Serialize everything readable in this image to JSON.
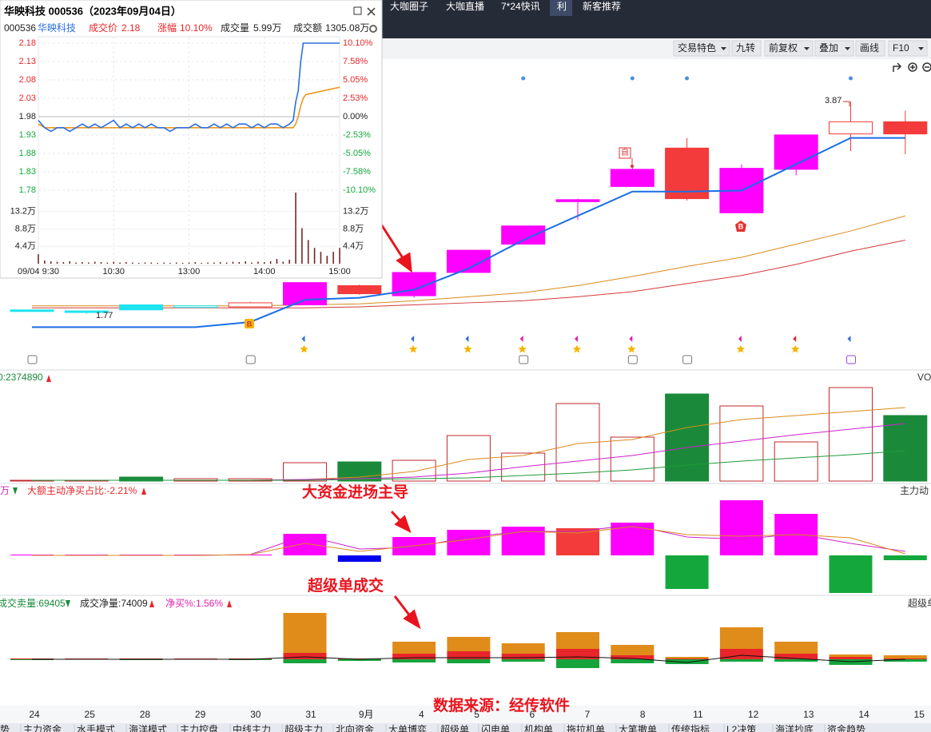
{
  "top_tabs": [
    "大咖圈子",
    "大咖直播",
    "7*24快讯",
    "利",
    "新客推荐"
  ],
  "toolbar": [
    "交易特色",
    "九转",
    "前复权",
    "叠加",
    "画线",
    "F10"
  ],
  "popup": {
    "title": "华映科技 000536（2023年09月04日）",
    "code": "000536",
    "name": "华映科技",
    "price_label": "成交价",
    "price": "2.18",
    "change_label": "涨幅",
    "change": "10.10%",
    "volume_label": "成交量",
    "volume": "5.99万",
    "amount_label": "成交额",
    "amount": "1305.08万",
    "chart_data": {
      "type": "line",
      "x": [
        0,
        5,
        10,
        15,
        20,
        25,
        30,
        35,
        40,
        45,
        50,
        55,
        60,
        65,
        70,
        75,
        80,
        85,
        90,
        95,
        100,
        105,
        110,
        115,
        120,
        125,
        130,
        135,
        140,
        145,
        150,
        155,
        160,
        165,
        170,
        175,
        180,
        185,
        190,
        195,
        200,
        203,
        205,
        207,
        209,
        211,
        213,
        240
      ],
      "series": [
        {
          "color": "#2d6ee0",
          "values": [
            1.97,
            1.95,
            1.94,
            1.95,
            1.95,
            1.94,
            1.95,
            1.96,
            1.95,
            1.96,
            1.95,
            1.96,
            1.97,
            1.95,
            1.96,
            1.95,
            1.96,
            1.95,
            1.96,
            1.95,
            1.95,
            1.94,
            1.95,
            1.95,
            1.95,
            1.96,
            1.95,
            1.95,
            1.96,
            1.95,
            1.96,
            1.95,
            1.96,
            1.96,
            1.95,
            1.96,
            1.95,
            1.96,
            1.96,
            1.95,
            1.96,
            1.97,
            2.02,
            2.05,
            2.13,
            2.18,
            2.18,
            2.18
          ]
        },
        {
          "color": "#f0961e",
          "values": [
            1.96,
            1.95,
            1.95,
            1.95,
            1.95,
            1.95,
            1.95,
            1.95,
            1.95,
            1.95,
            1.95,
            1.95,
            1.95,
            1.95,
            1.95,
            1.95,
            1.95,
            1.95,
            1.95,
            1.95,
            1.95,
            1.95,
            1.95,
            1.95,
            1.95,
            1.95,
            1.95,
            1.95,
            1.95,
            1.95,
            1.95,
            1.95,
            1.95,
            1.95,
            1.95,
            1.95,
            1.95,
            1.95,
            1.95,
            1.95,
            1.95,
            1.95,
            1.96,
            1.98,
            2.01,
            2.03,
            2.04,
            2.06
          ]
        }
      ],
      "xlim": [
        0,
        240
      ],
      "xticks": [
        {
          "value": 0,
          "label": "09/04 9:30"
        },
        {
          "value": 60,
          "label": "10:30"
        },
        {
          "value": 120,
          "label": "13:00"
        },
        {
          "value": 180,
          "label": "14:00"
        },
        {
          "value": 240,
          "label": "15:00"
        }
      ],
      "ylim": [
        1.78,
        2.18
      ],
      "yticks": [
        2.18,
        2.13,
        2.08,
        2.03,
        1.98,
        1.93,
        1.88,
        1.83,
        1.78
      ],
      "y2lim": [
        -10.1,
        10.1
      ],
      "y2ticks": [
        {
          "value": 10.1,
          "label": "10.10%"
        },
        {
          "value": 7.58,
          "label": "7.58%"
        },
        {
          "value": 5.05,
          "label": "5.05%"
        },
        {
          "value": 2.53,
          "label": "2.53%"
        },
        {
          "value": 0,
          "label": "0.00%"
        },
        {
          "value": -2.53,
          "label": "-2.53%"
        },
        {
          "value": -5.05,
          "label": "-5.05%"
        },
        {
          "value": -7.58,
          "label": "-7.58%"
        },
        {
          "value": -10.1,
          "label": "-10.10%"
        }
      ],
      "grid": true,
      "volume": {
        "type": "bar",
        "color": "#6b1a1a",
        "x": [
          0,
          5,
          10,
          15,
          20,
          25,
          30,
          35,
          40,
          45,
          50,
          55,
          60,
          65,
          70,
          75,
          80,
          85,
          90,
          95,
          100,
          105,
          110,
          115,
          120,
          125,
          130,
          135,
          140,
          145,
          150,
          155,
          160,
          165,
          170,
          175,
          180,
          185,
          190,
          195,
          200,
          205,
          210,
          215,
          220,
          225,
          230,
          235,
          240
        ],
        "values": [
          24000,
          8000,
          6000,
          5000,
          4000,
          6000,
          3000,
          4000,
          3000,
          5000,
          4000,
          3000,
          5000,
          3000,
          4000,
          3000,
          2000,
          3000,
          3000,
          2000,
          3000,
          2000,
          3000,
          2000,
          3000,
          4000,
          2000,
          3000,
          3000,
          4000,
          3000,
          5000,
          4000,
          6000,
          3000,
          5000,
          4000,
          6000,
          12000,
          5000,
          10000,
          180000,
          90000,
          60000,
          40000,
          30000,
          20000,
          30000,
          40000
        ],
        "ylim": [
          0,
          180000
        ],
        "yticks": [
          {
            "value": 132000,
            "label": "13.2万"
          },
          {
            "value": 88000,
            "label": "8.8万"
          },
          {
            "value": 44000,
            "label": "4.4万"
          }
        ]
      }
    }
  },
  "kline": {
    "type": "candlestick",
    "categories": [
      "24",
      "25",
      "28",
      "29",
      "30",
      "31",
      "9月",
      "4",
      "5",
      "6",
      "7",
      "8",
      "11",
      "12",
      "13",
      "14",
      "15"
    ],
    "open": [
      1.81,
      1.8,
      1.81,
      1.85,
      1.84,
      1.86,
      2.05,
      1.95,
      2.18,
      2.46,
      2.88,
      3.03,
      3.41,
      2.77,
      3.2,
      3.55,
      3.67
    ],
    "high": [
      1.81,
      1.8,
      1.86,
      1.85,
      1.89,
      2.08,
      2.06,
      2.18,
      2.4,
      2.64,
      2.91,
      3.23,
      3.51,
      3.25,
      3.54,
      3.87,
      3.78
    ],
    "low": [
      1.81,
      1.77,
      1.81,
      1.83,
      1.84,
      1.86,
      1.96,
      1.93,
      2.18,
      2.46,
      2.7,
      3.03,
      2.89,
      2.77,
      3.14,
      3.38,
      3.35
    ],
    "close": [
      1.8,
      1.79,
      1.86,
      1.84,
      1.88,
      2.08,
      1.97,
      2.18,
      2.4,
      2.64,
      2.9,
      3.2,
      2.91,
      3.21,
      3.54,
      3.67,
      3.55
    ],
    "colors": [
      "#1ee3f0",
      "#1ee3f0",
      "#1ee3f0",
      "#1ee3f0",
      "#f33b3b",
      "#ff00ff",
      "#f33b3b",
      "#ff00ff",
      "#ff00ff",
      "#ff00ff",
      "#ff00ff",
      "#ff00ff",
      "#f33b3b",
      "#ff00ff",
      "#ff00ff",
      "#f33b3b",
      "#f33b3b"
    ],
    "hollow": [
      false,
      false,
      false,
      true,
      true,
      false,
      false,
      false,
      false,
      false,
      false,
      false,
      false,
      false,
      false,
      true,
      false
    ],
    "ylim": [
      1.2,
      4.4
    ],
    "lines": [
      {
        "color": "#1a6fe6",
        "values": [
          1.64,
          1.64,
          1.64,
          1.64,
          1.69,
          1.91,
          1.93,
          2.01,
          2.22,
          2.5,
          2.74,
          2.98,
          2.98,
          2.99,
          3.25,
          3.51,
          3.51
        ]
      },
      {
        "color": "#d98a1c",
        "values": [
          1.85,
          1.85,
          1.85,
          1.85,
          1.85,
          1.86,
          1.87,
          1.9,
          1.94,
          1.98,
          2.05,
          2.14,
          2.24,
          2.33,
          2.46,
          2.59,
          2.74
        ]
      },
      {
        "color": "#d43a3a",
        "values": [
          1.83,
          1.83,
          1.83,
          1.83,
          1.83,
          1.83,
          1.84,
          1.86,
          1.88,
          1.9,
          1.94,
          1.99,
          2.07,
          2.15,
          2.26,
          2.39,
          2.5
        ]
      }
    ],
    "annotations": {
      "high": 3.87,
      "low": 1.77
    },
    "markers": {
      "buy": "B",
      "self": "自"
    }
  },
  "volume": {
    "type": "bar",
    "header": "0:2374890",
    "side_label": "VO",
    "values": [
      1,
      1,
      5,
      3,
      3,
      23,
      24,
      26,
      57,
      35,
      97,
      55,
      109,
      94,
      49,
      117,
      82
    ],
    "colors": [
      "#c0282d",
      "#c0282d",
      "#1a8a3a",
      "#c0282d",
      "#c0282d",
      "#c0282d",
      "#1a8a3a",
      "#c0282d",
      "#c0282d",
      "#c0282d",
      "#c0282d",
      "#c0282d",
      "#1a8a3a",
      "#c0282d",
      "#c0282d",
      "#c0282d",
      "#1a8a3a"
    ],
    "hollow": [
      true,
      true,
      false,
      true,
      true,
      true,
      false,
      true,
      true,
      true,
      true,
      true,
      false,
      true,
      true,
      true,
      false
    ],
    "ylim": [
      0,
      140
    ],
    "lines": [
      {
        "color": "#d98a1c",
        "values": [
          1,
          1,
          1,
          1,
          1,
          2,
          5,
          12,
          27,
          32,
          47,
          52,
          67,
          77,
          82,
          87,
          92
        ]
      },
      {
        "color": "#cc22cc",
        "values": [
          1,
          1,
          1,
          1,
          1,
          2,
          3,
          5,
          10,
          18,
          25,
          32,
          42,
          50,
          58,
          65,
          72
        ]
      },
      {
        "color": "#1f9a3a",
        "values": [
          1,
          1,
          1,
          1,
          1,
          1,
          2,
          3,
          4,
          7,
          10,
          14,
          20,
          25,
          29,
          33,
          38
        ]
      }
    ]
  },
  "net": {
    "type": "bar",
    "header_unit": "万",
    "header": "大额主动净买占比:-2.21%",
    "side_label": "主力动",
    "values": [
      1,
      1,
      1,
      1,
      1,
      27,
      -8,
      23,
      32,
      36,
      34,
      41,
      -42,
      69,
      52,
      -47,
      -6
    ],
    "colors": [
      "#ff00ff",
      "#ff00ff",
      "#ff00ff",
      "#ff00ff",
      "#ff00ff",
      "#ff00ff",
      "#0000ee",
      "#ff00ff",
      "#ff00ff",
      "#ff00ff",
      "#f33b3b",
      "#ff00ff",
      "#14a83c",
      "#ff00ff",
      "#ff00ff",
      "#14a83c",
      "#14a83c"
    ],
    "ylim": [
      -60,
      75
    ],
    "lines": [
      {
        "color": "#cc22cc",
        "values": [
          0,
          0,
          0,
          0,
          1,
          25,
          8,
          10,
          23,
          30,
          30,
          38,
          23,
          20,
          27,
          15,
          5
        ]
      },
      {
        "color": "#d98a1c",
        "values": [
          0,
          0,
          0,
          0,
          1,
          15,
          5,
          12,
          20,
          30,
          28,
          36,
          26,
          24,
          26,
          22,
          2
        ]
      }
    ]
  },
  "super": {
    "type": "stacked-bar",
    "sell_volume": "成交卖量:69405",
    "net_volume": "成交净量:74009",
    "net_pct": "净买%:1.56%",
    "side_label": "超级单",
    "ylim": [
      -20,
      60
    ],
    "large": {
      "color": "#e8262a",
      "values": [
        1,
        1,
        1,
        1,
        1,
        8,
        1,
        7,
        10,
        7,
        13,
        5,
        1,
        13,
        7,
        3,
        1
      ]
    },
    "super": {
      "color": "#e08c1a",
      "values": [
        0,
        0,
        0,
        0,
        0,
        50,
        0,
        15,
        18,
        13,
        21,
        13,
        2,
        27,
        15,
        3,
        4
      ]
    },
    "sell": {
      "color": "#16a33c",
      "values": [
        -1,
        0,
        -1,
        0,
        -1,
        -5,
        -2,
        -4,
        -5,
        -3,
        -11,
        -5,
        -6,
        -3,
        -3,
        -7,
        -3
      ]
    },
    "net_line": {
      "color": "#111111",
      "values": [
        0,
        0,
        0,
        0,
        0,
        3,
        0,
        2,
        2,
        2,
        3,
        1,
        -4,
        5,
        1,
        -3,
        0
      ]
    }
  },
  "callouts": [
    "大资金进场主导",
    "超级单成交",
    "数据来源：经传软件"
  ],
  "bottom_tabs": [
    "势",
    "主力资金",
    "水手模式",
    "海洋模式",
    "主力控盘",
    "中线主力",
    "超级主力",
    "北向资金",
    "大单博弈",
    "超级单",
    "闪电单",
    "机构单",
    "拖拉机单",
    "大笔撤单",
    "传统指标",
    "L2决策",
    "海洋抄底",
    "资金趋势"
  ]
}
